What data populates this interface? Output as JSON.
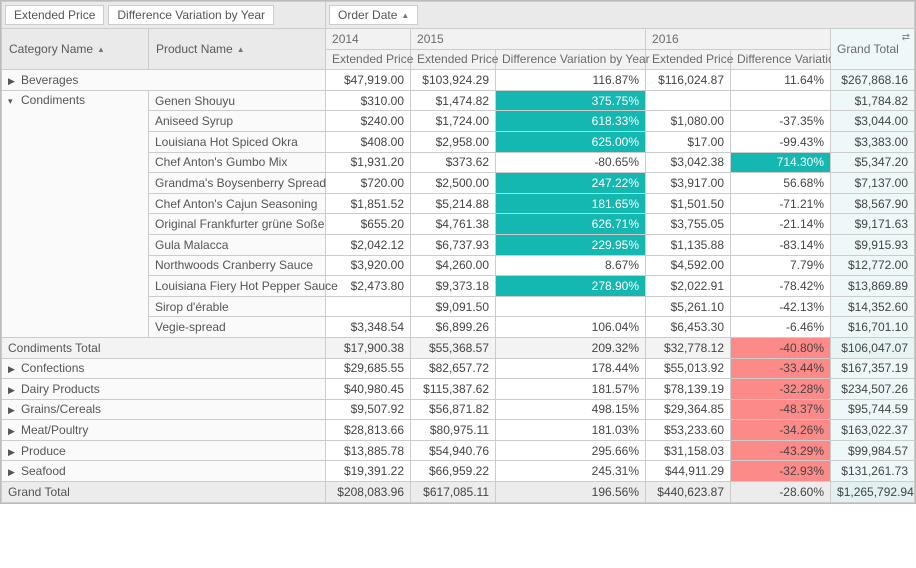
{
  "dataFields": {
    "extPrice": "Extended Price",
    "diffVar": "Difference Variation by Year"
  },
  "colField": "Order Date",
  "rowFields": {
    "category": "Category Name",
    "product": "Product Name"
  },
  "years": {
    "y2014": "2014",
    "y2015": "2015",
    "y2016": "2016"
  },
  "measureLabels": {
    "ep": "Extended Price",
    "dv": "Difference Variation by Year",
    "gt": "Grand Total"
  },
  "rows": {
    "beverages": {
      "name": "Beverages",
      "ep2014": "$47,919.00",
      "ep2015": "$103,924.29",
      "dv2015": "116.87%",
      "ep2016": "$116,024.87",
      "dv2016": "11.64%",
      "gt": "$267,868.16"
    },
    "condiments": {
      "name": "Condiments"
    },
    "c_genen": {
      "name": "Genen Shouyu",
      "ep2014": "$310.00",
      "ep2015": "$1,474.82",
      "dv2015": "375.75%",
      "ep2016": "",
      "dv2016": "",
      "gt": "$1,784.82",
      "dv2015_hl": "teal"
    },
    "c_aniseed": {
      "name": "Aniseed Syrup",
      "ep2014": "$240.00",
      "ep2015": "$1,724.00",
      "dv2015": "618.33%",
      "ep2016": "$1,080.00",
      "dv2016": "-37.35%",
      "gt": "$3,044.00",
      "dv2015_hl": "teal"
    },
    "c_lhot": {
      "name": "Louisiana Hot Spiced Okra",
      "ep2014": "$408.00",
      "ep2015": "$2,958.00",
      "dv2015": "625.00%",
      "ep2016": "$17.00",
      "dv2016": "-99.43%",
      "gt": "$3,383.00",
      "dv2015_hl": "teal"
    },
    "c_gumbo": {
      "name": "Chef Anton's Gumbo Mix",
      "ep2014": "$1,931.20",
      "ep2015": "$373.62",
      "dv2015": "-80.65%",
      "ep2016": "$3,042.38",
      "dv2016": "714.30%",
      "gt": "$5,347.20",
      "dv2016_hl": "teal"
    },
    "c_boysen": {
      "name": "Grandma's Boysenberry Spread",
      "ep2014": "$720.00",
      "ep2015": "$2,500.00",
      "dv2015": "247.22%",
      "ep2016": "$3,917.00",
      "dv2016": "56.68%",
      "gt": "$7,137.00",
      "dv2015_hl": "teal"
    },
    "c_cajun": {
      "name": "Chef Anton's Cajun Seasoning",
      "ep2014": "$1,851.52",
      "ep2015": "$5,214.88",
      "dv2015": "181.65%",
      "ep2016": "$1,501.50",
      "dv2016": "-71.21%",
      "gt": "$8,567.90",
      "dv2015_hl": "teal"
    },
    "c_frank": {
      "name": "Original Frankfurter grüne Soße",
      "ep2014": "$655.20",
      "ep2015": "$4,761.38",
      "dv2015": "626.71%",
      "ep2016": "$3,755.05",
      "dv2016": "-21.14%",
      "gt": "$9,171.63",
      "dv2015_hl": "teal"
    },
    "c_gula": {
      "name": "Gula Malacca",
      "ep2014": "$2,042.12",
      "ep2015": "$6,737.93",
      "dv2015": "229.95%",
      "ep2016": "$1,135.88",
      "dv2016": "-83.14%",
      "gt": "$9,915.93",
      "dv2015_hl": "teal"
    },
    "c_north": {
      "name": "Northwoods Cranberry Sauce",
      "ep2014": "$3,920.00",
      "ep2015": "$4,260.00",
      "dv2015": "8.67%",
      "ep2016": "$4,592.00",
      "dv2016": "7.79%",
      "gt": "$12,772.00"
    },
    "c_fiery": {
      "name": "Louisiana Fiery Hot Pepper Sauce",
      "ep2014": "$2,473.80",
      "ep2015": "$9,373.18",
      "dv2015": "278.90%",
      "ep2016": "$2,022.91",
      "dv2016": "-78.42%",
      "gt": "$13,869.89",
      "dv2015_hl": "teal"
    },
    "c_sirop": {
      "name": "Sirop d'érable",
      "ep2014": "",
      "ep2015": "$9,091.50",
      "dv2015": "",
      "ep2016": "$5,261.10",
      "dv2016": "-42.13%",
      "gt": "$14,352.60"
    },
    "c_vegie": {
      "name": "Vegie-spread",
      "ep2014": "$3,348.54",
      "ep2015": "$6,899.26",
      "dv2015": "106.04%",
      "ep2016": "$6,453.30",
      "dv2016": "-6.46%",
      "gt": "$16,701.10"
    },
    "condTotal": {
      "name": "Condiments Total",
      "ep2014": "$17,900.38",
      "ep2015": "$55,368.57",
      "dv2015": "209.32%",
      "ep2016": "$32,778.12",
      "dv2016": "-40.80%",
      "gt": "$106,047.07",
      "dv2016_hl": "red"
    },
    "confections": {
      "name": "Confections",
      "ep2014": "$29,685.55",
      "ep2015": "$82,657.72",
      "dv2015": "178.44%",
      "ep2016": "$55,013.92",
      "dv2016": "-33.44%",
      "gt": "$167,357.19",
      "dv2016_hl": "red"
    },
    "dairy": {
      "name": "Dairy Products",
      "ep2014": "$40,980.45",
      "ep2015": "$115,387.62",
      "dv2015": "181.57%",
      "ep2016": "$78,139.19",
      "dv2016": "-32.28%",
      "gt": "$234,507.26",
      "dv2016_hl": "red"
    },
    "grains": {
      "name": "Grains/Cereals",
      "ep2014": "$9,507.92",
      "ep2015": "$56,871.82",
      "dv2015": "498.15%",
      "ep2016": "$29,364.85",
      "dv2016": "-48.37%",
      "gt": "$95,744.59",
      "dv2016_hl": "red"
    },
    "meat": {
      "name": "Meat/Poultry",
      "ep2014": "$28,813.66",
      "ep2015": "$80,975.11",
      "dv2015": "181.03%",
      "ep2016": "$53,233.60",
      "dv2016": "-34.26%",
      "gt": "$163,022.37",
      "dv2016_hl": "red"
    },
    "produce": {
      "name": "Produce",
      "ep2014": "$13,885.78",
      "ep2015": "$54,940.76",
      "dv2015": "295.66%",
      "ep2016": "$31,158.03",
      "dv2016": "-43.29%",
      "gt": "$99,984.57",
      "dv2016_hl": "red"
    },
    "seafood": {
      "name": "Seafood",
      "ep2014": "$19,391.22",
      "ep2015": "$66,959.22",
      "dv2015": "245.31%",
      "ep2016": "$44,911.29",
      "dv2016": "-32.93%",
      "gt": "$131,261.73",
      "dv2016_hl": "red"
    },
    "grandTotal": {
      "name": "Grand Total",
      "ep2014": "$208,083.96",
      "ep2015": "$617,085.11",
      "dv2015": "196.56%",
      "ep2016": "$440,623.87",
      "dv2016": "-28.60%",
      "gt": "$1,265,792.94"
    }
  },
  "colors": {
    "teal": "#14b8b0",
    "red": "#fb8a89",
    "headerBg": "#eaeaea",
    "border": "#cccccc",
    "gtBg": "#eef8f8"
  }
}
